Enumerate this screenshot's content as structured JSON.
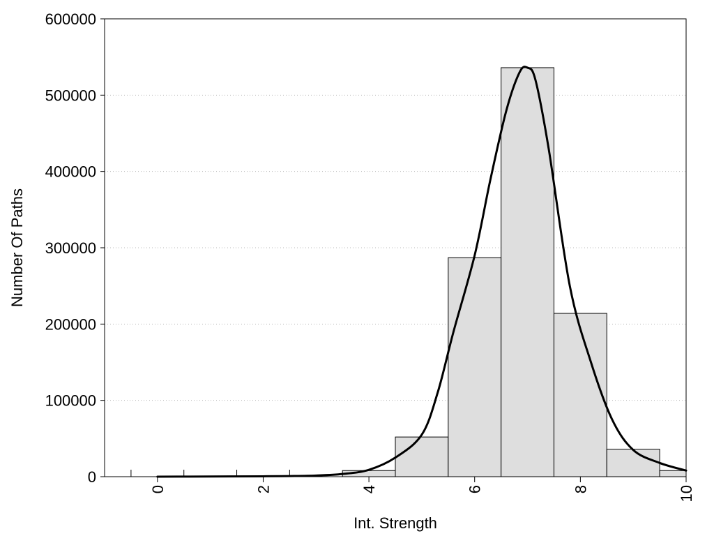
{
  "chart_data": {
    "type": "bar",
    "title": "",
    "xlabel": "Int. Strength",
    "ylabel": "Number Of Paths",
    "xlim": [
      -1,
      10
    ],
    "ylim": [
      0,
      600000
    ],
    "x_ticks": [
      0,
      2,
      4,
      6,
      8,
      10
    ],
    "x_tick_labels": [
      "0",
      "2",
      "4",
      "6",
      "8",
      "10"
    ],
    "y_ticks": [
      0,
      100000,
      200000,
      300000,
      400000,
      500000,
      600000
    ],
    "y_tick_labels": [
      "0",
      "100000",
      "200000",
      "300000",
      "400000",
      "500000",
      "600000"
    ],
    "grid": "horizontal dotted",
    "bar_color": "#dedede",
    "bar_edge_color": "#000000",
    "curve_color": "#000000",
    "bars": [
      {
        "x": 0,
        "value": 0
      },
      {
        "x": 1,
        "value": 0
      },
      {
        "x": 2,
        "value": 0
      },
      {
        "x": 3,
        "value": 0
      },
      {
        "x": 4,
        "value": 8000
      },
      {
        "x": 5,
        "value": 52000
      },
      {
        "x": 6,
        "value": 287000
      },
      {
        "x": 7,
        "value": 536000
      },
      {
        "x": 8,
        "value": 214000
      },
      {
        "x": 9,
        "value": 36000
      },
      {
        "x": 10,
        "value": 8000
      }
    ],
    "curve": [
      {
        "x": 0,
        "y": 0
      },
      {
        "x": 1,
        "y": 200
      },
      {
        "x": 2,
        "y": 500
      },
      {
        "x": 2.5,
        "y": 800
      },
      {
        "x": 3,
        "y": 1500
      },
      {
        "x": 3.5,
        "y": 3500
      },
      {
        "x": 4,
        "y": 9000
      },
      {
        "x": 4.5,
        "y": 25000
      },
      {
        "x": 5,
        "y": 55000
      },
      {
        "x": 5.3,
        "y": 110000
      },
      {
        "x": 5.6,
        "y": 190000
      },
      {
        "x": 6,
        "y": 290000
      },
      {
        "x": 6.3,
        "y": 390000
      },
      {
        "x": 6.6,
        "y": 480000
      },
      {
        "x": 6.85,
        "y": 530000
      },
      {
        "x": 7,
        "y": 536000
      },
      {
        "x": 7.15,
        "y": 520000
      },
      {
        "x": 7.4,
        "y": 430000
      },
      {
        "x": 7.8,
        "y": 250000
      },
      {
        "x": 8.2,
        "y": 150000
      },
      {
        "x": 8.6,
        "y": 75000
      },
      {
        "x": 9,
        "y": 35000
      },
      {
        "x": 9.5,
        "y": 18000
      },
      {
        "x": 10,
        "y": 8000
      }
    ]
  }
}
